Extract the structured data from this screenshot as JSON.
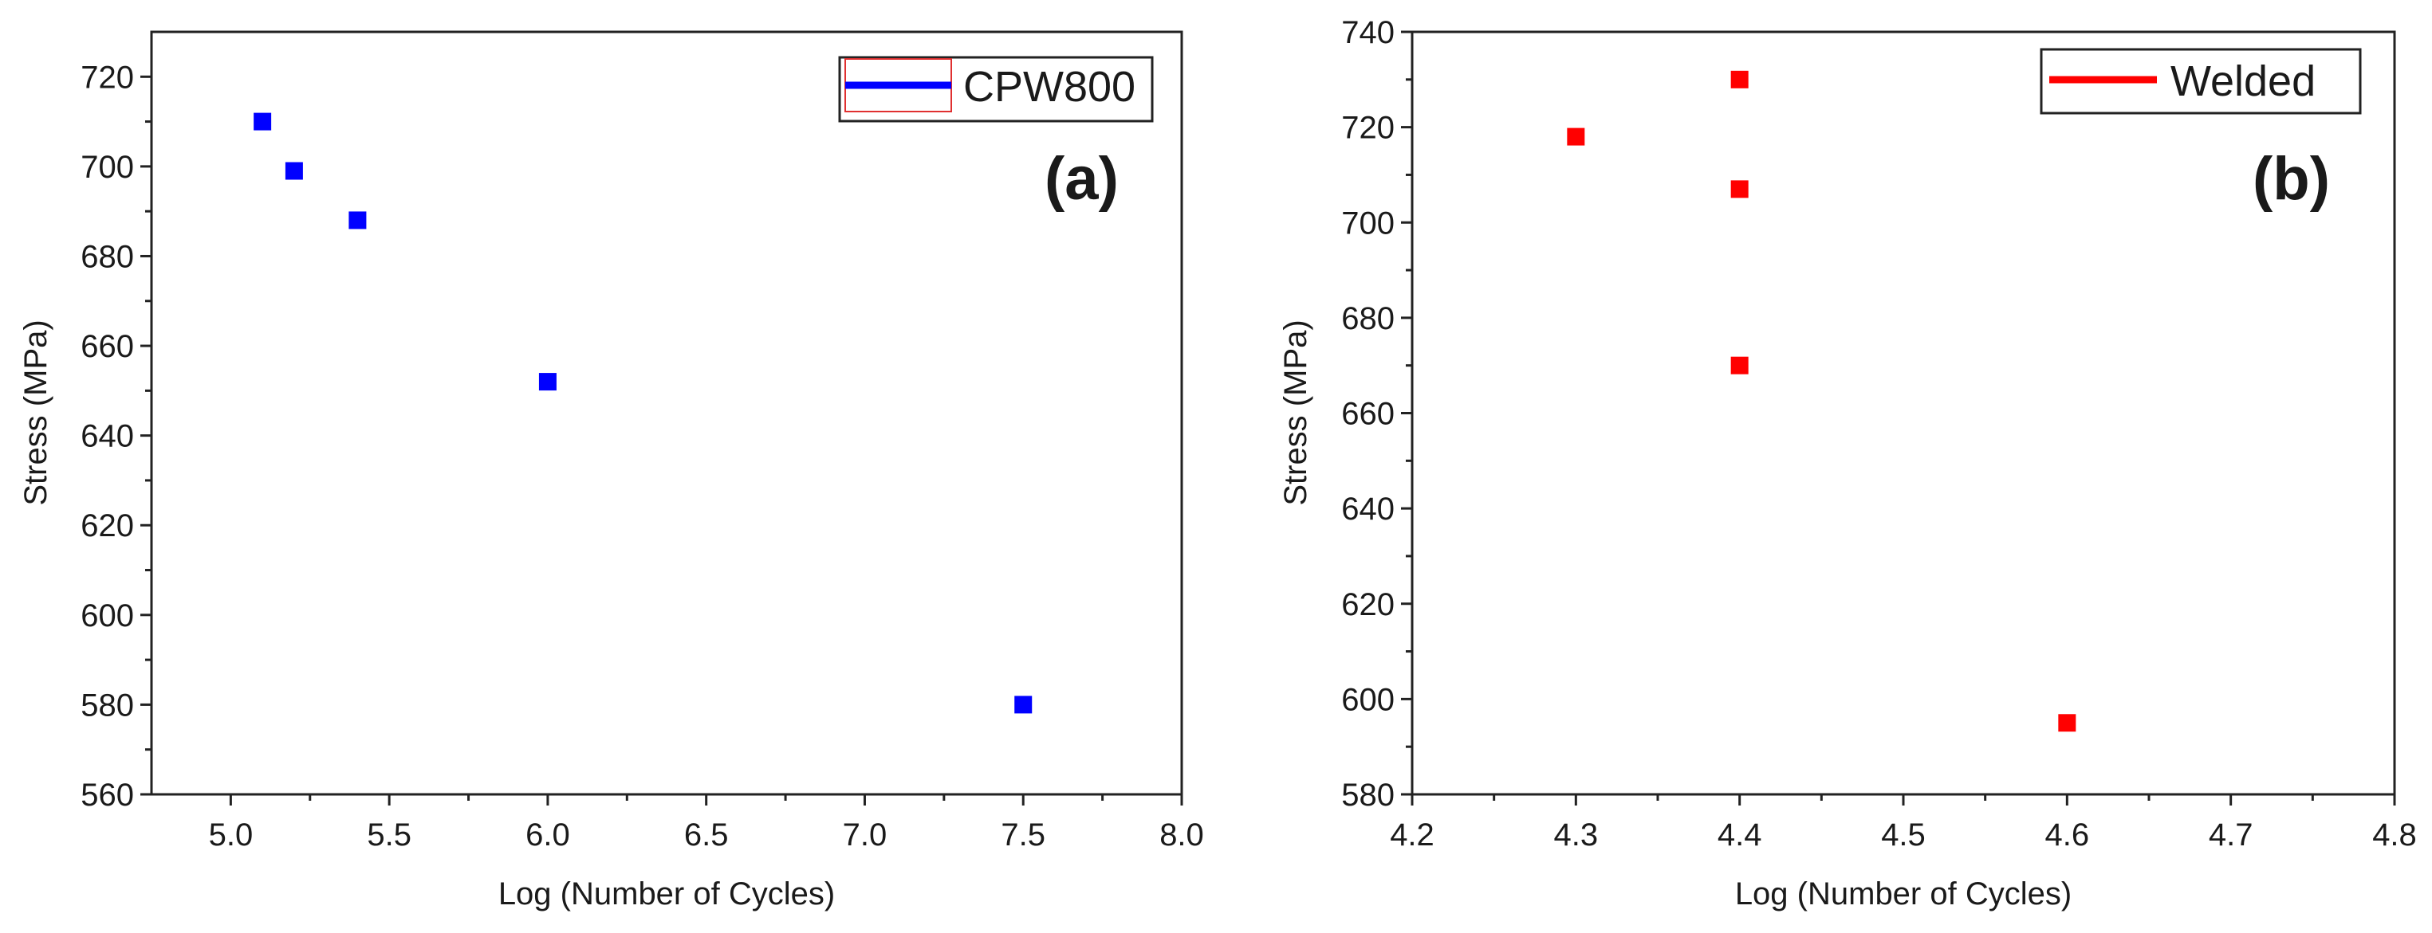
{
  "chart_data": [
    {
      "type": "scatter",
      "panel_label": "(a)",
      "xlabel": "Log (Number of Cycles)",
      "ylabel": "Stress (MPa)",
      "xlim": [
        4.75,
        8.0
      ],
      "ylim": [
        560,
        730
      ],
      "xticks": [
        5.0,
        5.5,
        6.0,
        6.5,
        7.0,
        7.5,
        8.0
      ],
      "xtick_labels": [
        "5.0",
        "5.5",
        "6.0",
        "6.5",
        "7.0",
        "7.5",
        "8.0"
      ],
      "yticks": [
        560,
        580,
        600,
        620,
        640,
        660,
        680,
        700,
        720
      ],
      "ytick_labels": [
        "560",
        "580",
        "600",
        "620",
        "640",
        "660",
        "680",
        "700",
        "720"
      ],
      "legend": {
        "label": "CPW800",
        "position": "top-right"
      },
      "series": [
        {
          "name": "CPW800",
          "color": "#0000ff",
          "x": [
            5.1,
            5.2,
            5.4,
            6.0,
            7.5
          ],
          "y": [
            710,
            699,
            688,
            652,
            580
          ]
        }
      ]
    },
    {
      "type": "scatter",
      "panel_label": "(b)",
      "xlabel": "Log (Number of Cycles)",
      "ylabel": "Stress (MPa)",
      "xlim": [
        4.2,
        4.8
      ],
      "ylim": [
        580,
        740
      ],
      "xticks": [
        4.2,
        4.3,
        4.4,
        4.5,
        4.6,
        4.7,
        4.8
      ],
      "xtick_labels": [
        "4.2",
        "4.3",
        "4.4",
        "4.5",
        "4.6",
        "4.7",
        "4.8"
      ],
      "yticks": [
        580,
        600,
        620,
        640,
        660,
        680,
        700,
        720,
        740
      ],
      "ytick_labels": [
        "580",
        "600",
        "620",
        "640",
        "660",
        "680",
        "700",
        "720",
        "740"
      ],
      "legend": {
        "label": "Welded",
        "position": "top-right"
      },
      "series": [
        {
          "name": "Welded",
          "color": "#ff0000",
          "x": [
            4.3,
            4.4,
            4.4,
            4.4,
            4.6
          ],
          "y": [
            718,
            730,
            707,
            670,
            595
          ]
        }
      ]
    }
  ]
}
